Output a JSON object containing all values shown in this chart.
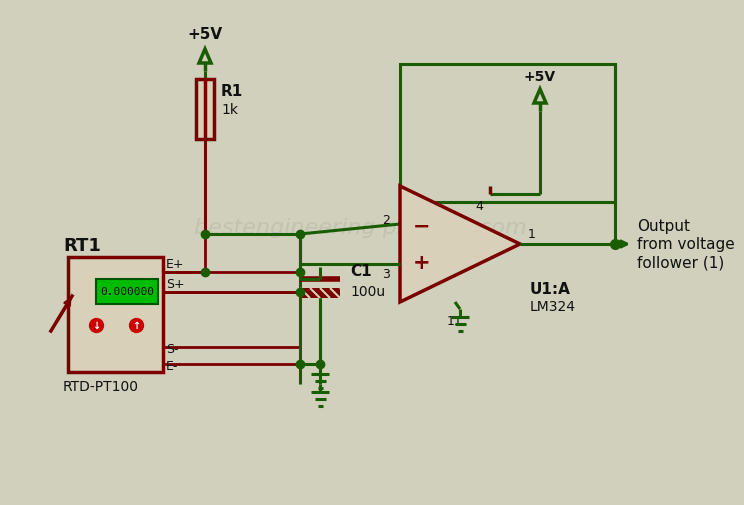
{
  "bg_color": "#d0d0bc",
  "wire_green": "#1a5c00",
  "comp_dark": "#7a0000",
  "comp_fill": "#d8d0b8",
  "text_color": "#111111",
  "wm_color": "#b8b8a8",
  "supply_voltage": "+5V",
  "r1_label": "R1",
  "r1_value": "1k",
  "c1_label": "C1",
  "c1_value": "100u",
  "u1_label": "U1:A",
  "u1_sublabel": "LM324",
  "rt1_label": "RT1",
  "rtd_label": "RTD-PT100",
  "display_value": "0.000000",
  "output_text": [
    "Output",
    "from voltage",
    "follower (1)"
  ],
  "pin1": "1",
  "pin2": "2",
  "pin3": "3",
  "pin4": "4",
  "pin11": "11",
  "eplus": "E+",
  "eminus": "E-",
  "splus": "S+",
  "sminus": "S-",
  "watermark": "bestengineering projects.com"
}
